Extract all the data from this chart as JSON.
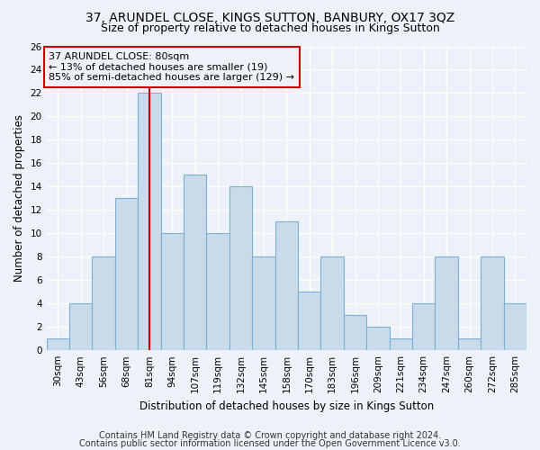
{
  "title": "37, ARUNDEL CLOSE, KINGS SUTTON, BANBURY, OX17 3QZ",
  "subtitle": "Size of property relative to detached houses in Kings Sutton",
  "xlabel": "Distribution of detached houses by size in Kings Sutton",
  "ylabel": "Number of detached properties",
  "categories": [
    "30sqm",
    "43sqm",
    "56sqm",
    "68sqm",
    "81sqm",
    "94sqm",
    "107sqm",
    "119sqm",
    "132sqm",
    "145sqm",
    "158sqm",
    "170sqm",
    "183sqm",
    "196sqm",
    "209sqm",
    "221sqm",
    "234sqm",
    "247sqm",
    "260sqm",
    "272sqm",
    "285sqm"
  ],
  "values": [
    1,
    4,
    8,
    13,
    22,
    10,
    15,
    10,
    14,
    8,
    11,
    5,
    8,
    3,
    2,
    1,
    4,
    8,
    1,
    8,
    4
  ],
  "bar_color": "#c9daea",
  "bar_edge_color": "#7bafd4",
  "red_line_index": 4,
  "annotation_line1": "37 ARUNDEL CLOSE: 80sqm",
  "annotation_line2": "← 13% of detached houses are smaller (19)",
  "annotation_line3": "85% of semi-detached houses are larger (129) →",
  "annotation_box_edge": "#cc0000",
  "ylim": [
    0,
    26
  ],
  "yticks": [
    0,
    2,
    4,
    6,
    8,
    10,
    12,
    14,
    16,
    18,
    20,
    22,
    24,
    26
  ],
  "footer1": "Contains HM Land Registry data © Crown copyright and database right 2024.",
  "footer2": "Contains public sector information licensed under the Open Government Licence v3.0.",
  "background_color": "#edf2f9",
  "grid_color": "#ffffff",
  "title_fontsize": 10,
  "subtitle_fontsize": 9,
  "axis_label_fontsize": 8.5,
  "tick_fontsize": 7.5,
  "annotation_fontsize": 8,
  "footer_fontsize": 7
}
